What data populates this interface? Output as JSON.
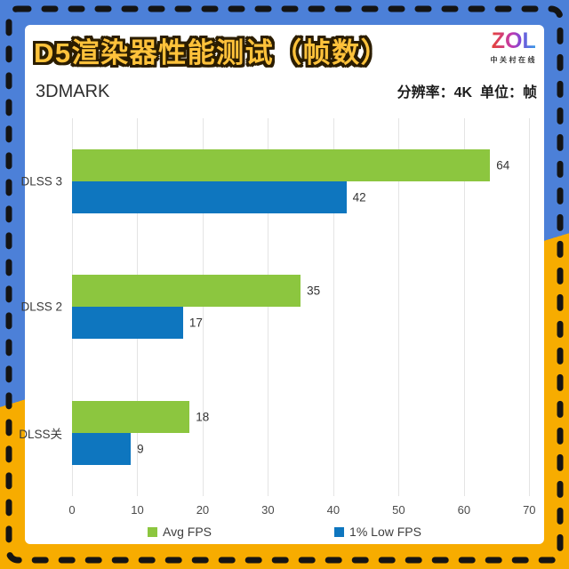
{
  "canvas": {
    "bg_top_color": "#4C80D8",
    "bg_bottom_color": "#F7AC00",
    "dash_color": "#141414",
    "card_bg": "#FFFFFF"
  },
  "header": {
    "title": "D5渲染器性能测试（帧数）",
    "title_fill_color": "#FFC23B",
    "title_outline_color": "#2B1D00",
    "benchmark_label": "3DMARK",
    "meta_label": "分辨率：4K  单位：帧",
    "logo": {
      "text": "ZOL",
      "subtext": "中关村在线",
      "gradient": [
        "#E8432F",
        "#C13AAE",
        "#7A4BD8",
        "#2FA3E8"
      ]
    }
  },
  "chart_data": {
    "type": "bar",
    "orientation": "horizontal",
    "title": "D5渲染器性能测试（帧数）",
    "subtitle": "3DMARK",
    "resolution": "4K",
    "unit": "帧",
    "categories": [
      "DLSS 3",
      "DLSS 2",
      "DLSS关"
    ],
    "series": [
      {
        "name": "Avg FPS",
        "color": "#8CC63F",
        "values": [
          64,
          35,
          18
        ]
      },
      {
        "name": "1% Low FPS",
        "color": "#0E76BF",
        "values": [
          42,
          17,
          9
        ]
      }
    ],
    "xlim": [
      0,
      72
    ],
    "xticks": [
      0,
      10,
      20,
      30,
      40,
      50,
      60,
      70
    ],
    "grid": true,
    "gridline_color": "#E4E4E4",
    "legend_position": "bottom",
    "value_labels": true
  }
}
